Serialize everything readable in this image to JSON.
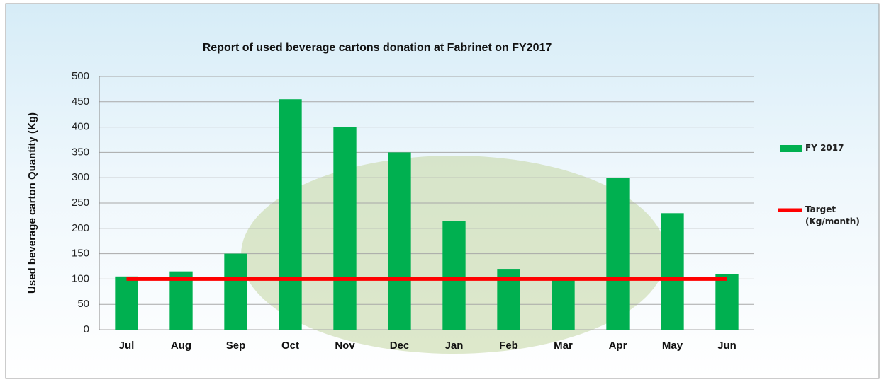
{
  "chart_data": {
    "type": "bar",
    "title": "Report of used beverage cartons donation at Fabrinet  on FY2017",
    "y_label": "Used beverage carton Quantity (Kg)",
    "categories": [
      "Jul",
      "Aug",
      "Sep",
      "Oct",
      "Nov",
      "Dec",
      "Jan",
      "Feb",
      "Mar",
      "Apr",
      "May",
      "Jun"
    ],
    "series": [
      {
        "name": "FY 2017",
        "color": "#00b050",
        "values": [
          105,
          115,
          150,
          455,
          400,
          350,
          215,
          120,
          100,
          300,
          230,
          110
        ]
      },
      {
        "name": "Target (Kg/month)",
        "color": "#ff0000",
        "type": "line",
        "values": [
          100,
          100,
          100,
          100,
          100,
          100,
          100,
          100,
          100,
          100,
          100,
          100
        ]
      }
    ],
    "ylim": [
      0,
      500
    ],
    "yticks": [
      0,
      50,
      100,
      150,
      200,
      250,
      300,
      350,
      400,
      450,
      500
    ],
    "grid": true
  }
}
